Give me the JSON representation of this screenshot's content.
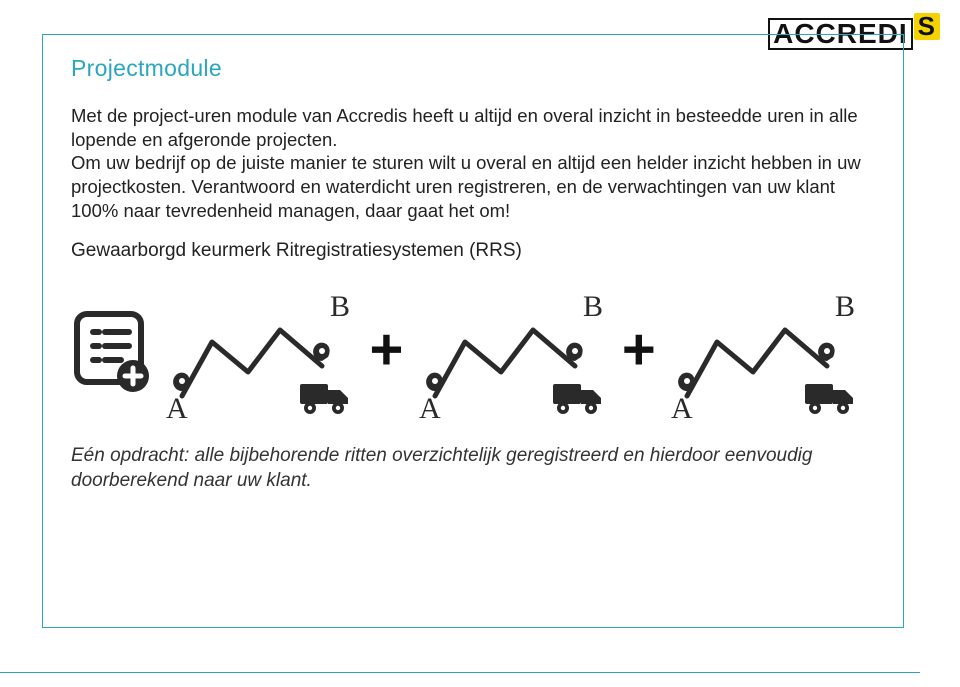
{
  "logo": {
    "text_main": "ACCREDI",
    "text_sup": "S",
    "accent_bg": "#f4d300"
  },
  "box_border_color": "#2aa6bf",
  "heading": "Projectmodule",
  "heading_color": "#2aa6bf",
  "body_text": "Met de project-uren module van Accredis heeft u altijd en overal inzicht in besteedde uren in alle lopende en afgeronde projecten.\nOm uw bedrijf op de juiste manier te sturen wilt u overal en altijd een helder inzicht hebben in uw projectkosten. Verantwoord en waterdicht uren registreren, en de verwachtingen van uw klant 100% naar tevredenheid managen, daar gaat het om!",
  "body_color": "#222222",
  "body_fontsize": 18.5,
  "section_title": "Gewaarborgd keurmerk Ritregistratiesystemen (RRS)",
  "bottom_note": "Eén opdracht: alle bijbehorende ritten overzichtelijk geregistreerd en hierdoor eenvoudig doorberekend naar uw klant.",
  "icon_row": {
    "plus_glyph": "+",
    "plus_color": "#111111",
    "plus_fontsize": 58,
    "route": {
      "label_start": "A",
      "label_end": "B",
      "pin_color": "#2a2a2a",
      "line_color": "#2a2a2a",
      "truck_color": "#2a2a2a"
    }
  },
  "list_icon": {
    "frame_color": "#2a2a2a",
    "plus_badge_bg": "#2a2a2a",
    "plus_badge_fg": "#ffffff"
  }
}
